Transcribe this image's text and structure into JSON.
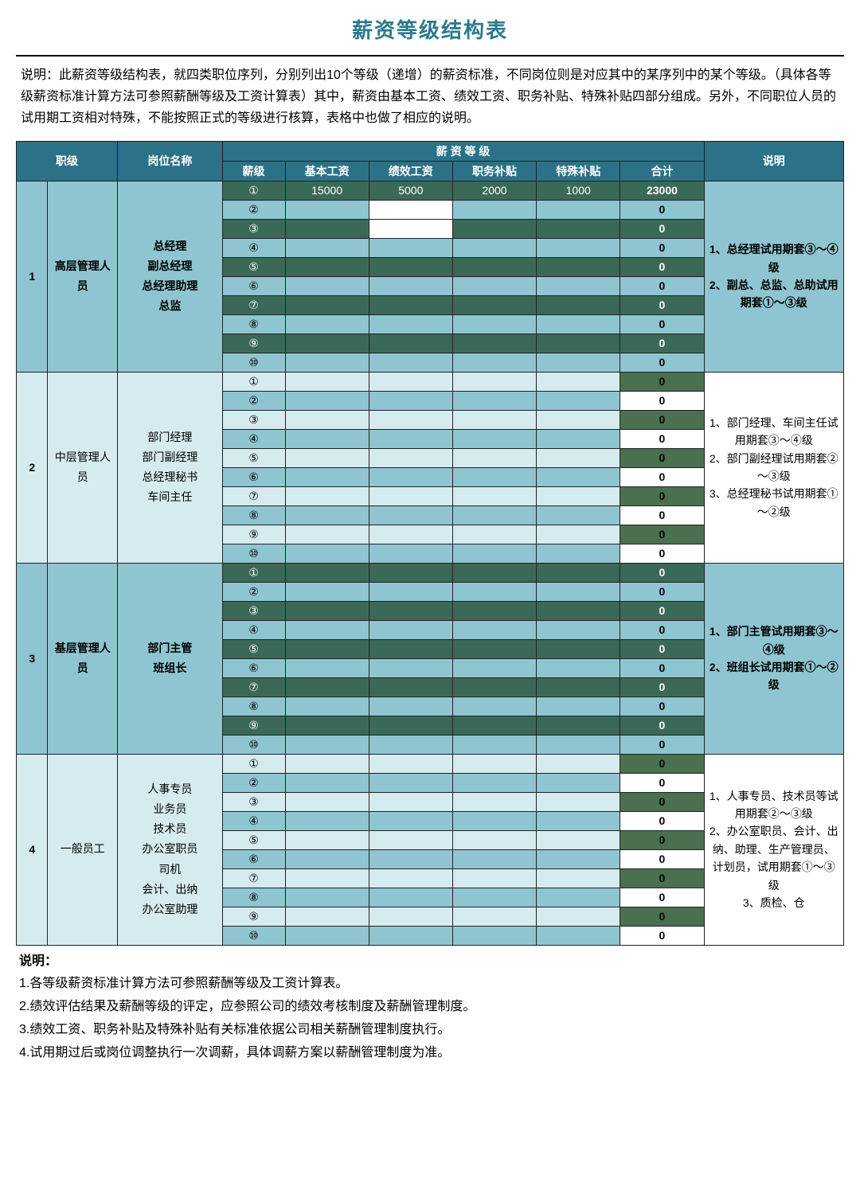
{
  "title": "薪资等级结构表",
  "intro": "说明：此薪资等级结构表，就四类职位序列，分别列出10个等级（递增）的薪资标准，不同岗位则是对应其中的某序列中的某个等级。（具体各等级薪资标准计算方法可参照薪酬等级及工资计算表）其中，薪资由基本工资、绩效工资、职务补贴、特殊补贴四部分组成。另外，不同职位人员的试用期工资相对特殊，不能按照正式的等级进行核算，表格中也做了相应的说明。",
  "headers": {
    "rank": "职级",
    "position": "岗位名称",
    "salaryLevel": "薪 资 等 级",
    "level": "薪级",
    "base": "基本工资",
    "perf": "绩效工资",
    "duty": "职务补贴",
    "special": "特殊补贴",
    "total": "合计",
    "desc": "说明"
  },
  "circled": [
    "①",
    "②",
    "③",
    "④",
    "⑤",
    "⑥",
    "⑦",
    "⑧",
    "⑨",
    "⑩"
  ],
  "sections": [
    {
      "num": "1",
      "rankName": "高层管理人员",
      "positions": "总经理\n副总经理\n总经理助理\n总监",
      "desc": "1、总经理试用期套③～④级\n2、副总、总监、总助试用期套①～③级",
      "row1": {
        "base": "15000",
        "perf": "5000",
        "duty": "2000",
        "special": "1000",
        "total": "23000"
      }
    },
    {
      "num": "2",
      "rankName": "中层管理人员",
      "positions": "部门经理\n部门副经理\n总经理秘书\n车间主任",
      "desc": "1、部门经理、车间主任试用期套③～④级\n2、部门副经理试用期套②～③级\n3、总经理秘书试用期套①～②级"
    },
    {
      "num": "3",
      "rankName": "基层管理人员",
      "positions": "部门主管\n班组长",
      "desc": "1、部门主管试用期套③～④级\n2、班组长试用期套①～②级"
    },
    {
      "num": "4",
      "rankName": "一般员工",
      "positions": "人事专员\n业务员\n技术员\n办公室职员\n司机\n会计、出纳\n办公室助理",
      "desc": "1、人事专员、技术员等试用期套②～③级\n2、办公室职员、会计、出纳、助理、生产管理员、计划员，试用期套①～③级\n3、质检、仓"
    }
  ],
  "footer": {
    "label": "说明：",
    "lines": [
      "1.各等级薪资标准计算方法可参照薪酬等级及工资计算表。",
      "2.绩效评估结果及薪酬等级的评定，应参照公司的绩效考核制度及薪酬管理制度。",
      "3.绩效工资、职务补贴及特殊补贴有关标准依据公司相关薪酬管理制度执行。",
      "4.试用期过后或岗位调整执行一次调薪，具体调薪方案以薪酬管理制度为准。"
    ]
  }
}
